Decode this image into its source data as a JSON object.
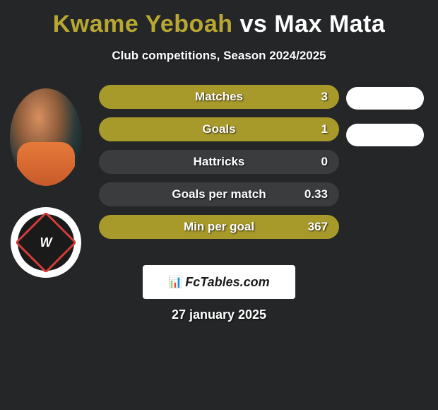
{
  "header": {
    "player1": "Kwame Yeboah",
    "vs": "vs",
    "player2": "Max Mata",
    "player1_color": "#b8a832",
    "vs_color": "#ffffff",
    "player2_color": "#ffffff",
    "subtitle": "Club competitions, Season 2024/2025"
  },
  "stats": [
    {
      "label": "Matches",
      "value": "3",
      "bg": "#a89a2a"
    },
    {
      "label": "Goals",
      "value": "1",
      "bg": "#a89a2a"
    },
    {
      "label": "Hattricks",
      "value": "0",
      "bg": "#3a3c3e"
    },
    {
      "label": "Goals per match",
      "value": "0.33",
      "bg": "#3a3c3e"
    },
    {
      "label": "Min per goal",
      "value": "367",
      "bg": "#a89a2a"
    }
  ],
  "right_pills": {
    "count": 2,
    "color": "#ffffff"
  },
  "footer": {
    "brand_icon": "📊",
    "brand_text": "FcTables.com",
    "date": "27 january 2025"
  },
  "styling": {
    "page_bg": "#242628",
    "title_fontsize": 34,
    "subtitle_fontsize": 17,
    "stat_row_height": 34,
    "stat_row_radius": 17,
    "stat_label_fontsize": 17,
    "stat_text_color": "#ffffff",
    "pill_width": 110,
    "pill_height": 32,
    "footer_badge_bg": "#ffffff",
    "footer_date_fontsize": 18
  }
}
